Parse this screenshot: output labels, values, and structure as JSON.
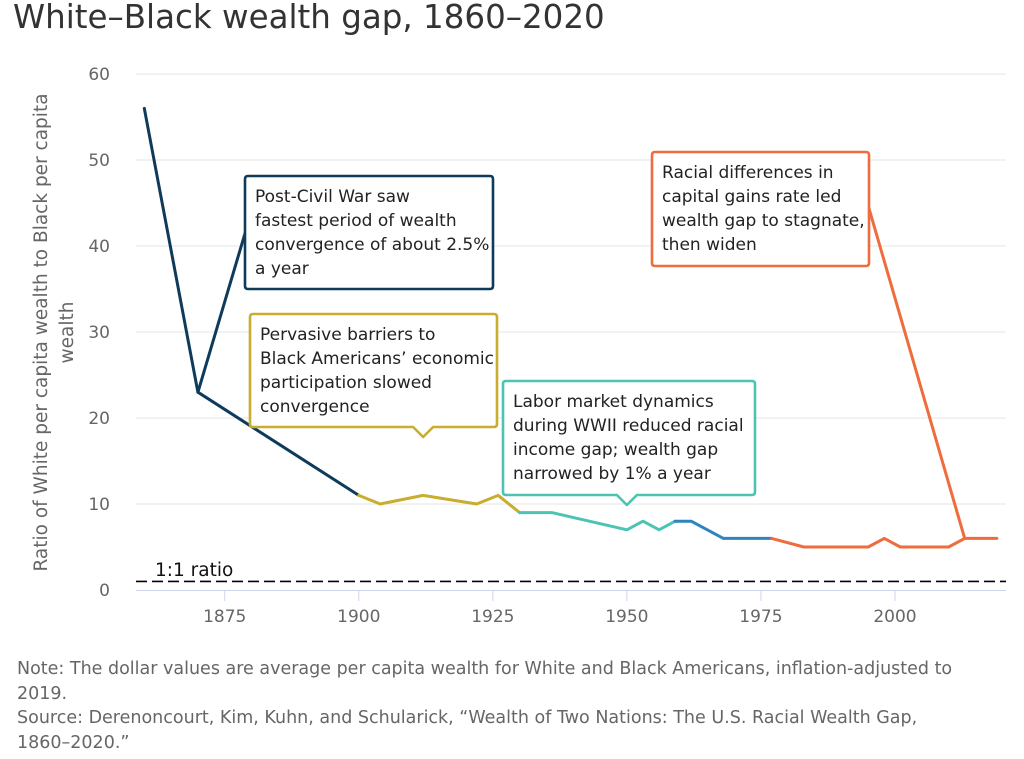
{
  "title": "White–Black wealth gap, 1860–2020",
  "footer": {
    "note_lines": [
      "Note: The dollar values are average per capita wealth for White and Black Americans, inflation-adjusted to",
      "2019."
    ],
    "source_lines": [
      "Source: Derenoncourt, Kim, Kuhn, and Schularick, “Wealth of Two Nations: The U.S. Racial Wealth Gap,",
      "1860–2020.”"
    ]
  },
  "chart_data": {
    "type": "line",
    "title": "White–Black wealth gap, 1860–2020",
    "xlabel": "",
    "ylabel": "Ratio of White per capita wealth to Black per capita wealth",
    "ylabel_lines": [
      "Ratio of White per capita wealth to Black per capita",
      "wealth"
    ],
    "xlim": [
      1860,
      2020
    ],
    "ylim": [
      0,
      60
    ],
    "x_ticks": [
      1875,
      1900,
      1925,
      1950,
      1975,
      2000
    ],
    "y_ticks": [
      0,
      10,
      20,
      30,
      40,
      50,
      60
    ],
    "grid": true,
    "legend": "none",
    "series": [
      {
        "color": "#0f3b5b",
        "x": [
          1860,
          1870,
          1900
        ],
        "y": [
          56,
          23,
          11
        ]
      },
      {
        "color": "#c9ad2f",
        "x": [
          1900,
          1904,
          1912,
          1922,
          1926,
          1930
        ],
        "y": [
          11,
          10,
          11,
          10,
          11,
          9
        ]
      },
      {
        "color": "#4dc4b2",
        "x": [
          1930,
          1936,
          1950,
          1953,
          1956,
          1959
        ],
        "y": [
          9,
          9,
          7,
          8,
          7,
          8
        ]
      },
      {
        "color": "#2f84bd",
        "x": [
          1959,
          1962,
          1968,
          1977
        ],
        "y": [
          8,
          8,
          6,
          6
        ]
      },
      {
        "color": "#ee6c3d",
        "x": [
          1977,
          1983,
          1995,
          1998,
          2001,
          2010,
          2013,
          2019
        ],
        "y": [
          6,
          5,
          5,
          6,
          5,
          5,
          6,
          6
        ]
      }
    ],
    "reference_line": {
      "value": 1,
      "label": "1:1 ratio",
      "style": "dashed",
      "color": "#000000"
    },
    "annotations": [
      {
        "color": "#0f3b5b",
        "anchor": {
          "x": 1870,
          "y": 23
        },
        "lines": [
          "Post-Civil War saw",
          "fastest period of wealth",
          "convergence of about 2.5%",
          "a year"
        ]
      },
      {
        "color": "#c9ad2f",
        "anchor": {
          "x": 1912,
          "y": 11
        },
        "lines": [
          "Pervasive barriers to",
          "Black Americans’ economic",
          "participation slowed",
          "convergence"
        ]
      },
      {
        "color": "#4dc4b2",
        "anchor": {
          "x": 1950,
          "y": 7
        },
        "lines": [
          "Labor market dynamics",
          "during WWII reduced racial",
          "income gap; wealth gap",
          "narrowed by 1% a year"
        ]
      },
      {
        "color": "#ee6c3d",
        "anchor": {
          "x": 2013,
          "y": 6
        },
        "lines": [
          "Racial differences in",
          "capital gains rate led",
          "wealth gap to stagnate,",
          "then widen"
        ]
      }
    ]
  }
}
